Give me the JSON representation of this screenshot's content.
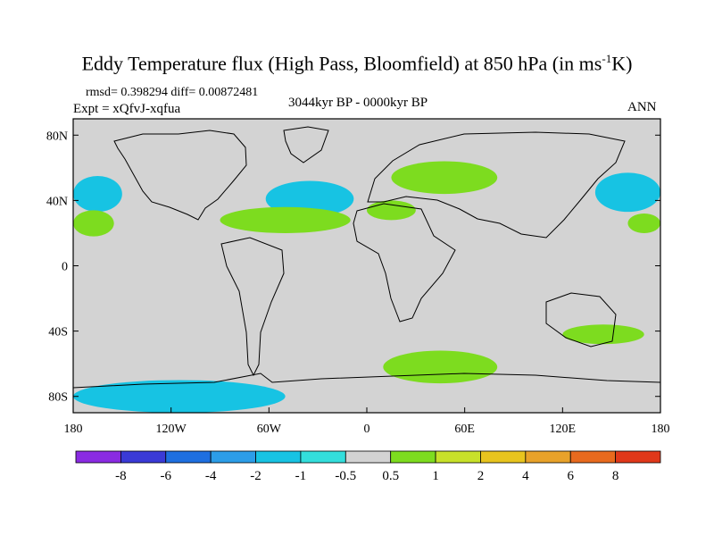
{
  "title": {
    "main": "Eddy Temperature flux (High Pass, Bloomfield) at 850 hPa (in ms",
    "unit_exp": "-1",
    "unit_tail": "K)"
  },
  "stats": "rmsd= 0.398294 diff= 0.00872481",
  "experiment": "Expt = xQfvJ-xqfua",
  "period": "3044kyr BP - 0000kyr BP",
  "season": "ANN",
  "chart_data": {
    "type": "heatmap",
    "projection": "cylindrical-equidistant",
    "xlim": [
      -180,
      180
    ],
    "ylim": [
      -90,
      90
    ],
    "x_ticks": [
      {
        "value": -180,
        "label": "180"
      },
      {
        "value": -120,
        "label": "120W"
      },
      {
        "value": -60,
        "label": "60W"
      },
      {
        "value": 0,
        "label": "0"
      },
      {
        "value": 60,
        "label": "60E"
      },
      {
        "value": 120,
        "label": "120E"
      },
      {
        "value": 180,
        "label": "180"
      }
    ],
    "y_ticks": [
      {
        "value": 80,
        "label": "80N"
      },
      {
        "value": 40,
        "label": "40N"
      },
      {
        "value": 0,
        "label": "0"
      },
      {
        "value": -40,
        "label": "40S"
      },
      {
        "value": -80,
        "label": "80S"
      }
    ],
    "colorbar": {
      "labels": [
        "-8",
        "-6",
        "-4",
        "-2",
        "-1",
        "-0.5",
        "0.5",
        "1",
        "2",
        "4",
        "6",
        "8"
      ],
      "colors": [
        "#8a2be2",
        "#3a3ad6",
        "#1e6fe0",
        "#2c9de8",
        "#17c3e3",
        "#33dedc",
        "#d3d3d3",
        "#7ddc1f",
        "#c8e12a",
        "#e8c41e",
        "#e8a22a",
        "#e86a1e",
        "#e0381a"
      ]
    },
    "regions": [
      {
        "name": "north-pacific-west-negative",
        "sign": "negative",
        "level": "-2 to -1",
        "lon": [
          -180,
          -150
        ],
        "lat": [
          33,
          55
        ]
      },
      {
        "name": "north-pacific-east-negative",
        "sign": "negative",
        "level": "-2 to -1",
        "lon": [
          140,
          180
        ],
        "lat": [
          33,
          57
        ]
      },
      {
        "name": "north-atlantic-negative",
        "sign": "negative",
        "level": "-1 to -0.5",
        "lon": [
          -62,
          -8
        ],
        "lat": [
          30,
          52
        ]
      },
      {
        "name": "subtropical-pacific-west-positive",
        "sign": "positive",
        "level": "0.5 to 2",
        "lon": [
          -180,
          -155
        ],
        "lat": [
          18,
          34
        ]
      },
      {
        "name": "subtropical-atlantic-positive",
        "sign": "positive",
        "level": "0.5 to 1",
        "lon": [
          -90,
          -10
        ],
        "lat": [
          20,
          36
        ]
      },
      {
        "name": "eurasia-positive",
        "sign": "positive",
        "level": "0.5 to 1",
        "lon": [
          15,
          80
        ],
        "lat": [
          44,
          64
        ]
      },
      {
        "name": "mediterranean-positive",
        "sign": "positive",
        "level": "0.5 to 1",
        "lon": [
          0,
          30
        ],
        "lat": [
          28,
          40
        ]
      },
      {
        "name": "north-pacific-east-positive",
        "sign": "positive",
        "level": "0.5 to 1",
        "lon": [
          160,
          180
        ],
        "lat": [
          20,
          32
        ]
      },
      {
        "name": "southern-ocean-atlantic-positive",
        "sign": "positive",
        "level": "0.5 to 4",
        "lon": [
          10,
          80
        ],
        "lat": [
          -72,
          -52
        ]
      },
      {
        "name": "australia-positive",
        "sign": "positive",
        "level": "0.5 to 1",
        "lon": [
          120,
          170
        ],
        "lat": [
          -48,
          -36
        ]
      },
      {
        "name": "antarctic-peninsula-negative",
        "sign": "negative",
        "level": "-2 to -0.5",
        "lon": [
          -180,
          -50
        ],
        "lat": [
          -90,
          -70
        ]
      }
    ]
  }
}
